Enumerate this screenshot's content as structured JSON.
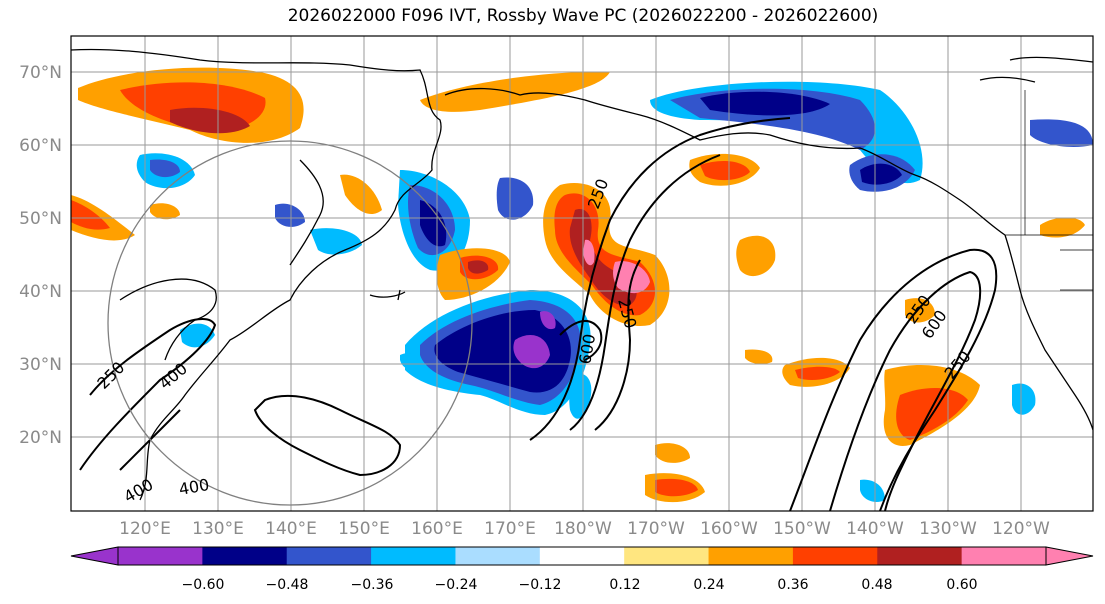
{
  "title": "2026022000 F096 IVT, Rossby Wave PC (2026022200 - 2026022600)",
  "map": {
    "lat_ticks": [
      "70°N",
      "60°N",
      "50°N",
      "40°N",
      "30°N",
      "20°N"
    ],
    "lon_ticks": [
      "120°E",
      "130°E",
      "140°E",
      "150°E",
      "160°E",
      "170°E",
      "180°W",
      "170°W",
      "160°W",
      "150°W",
      "140°W",
      "130°W",
      "120°W"
    ],
    "contour_labels": [
      "250",
      "250",
      "600",
      "250",
      "400",
      "250",
      "600",
      "400",
      "250",
      "400"
    ]
  },
  "colorbar": {
    "tick_labels": [
      "−0.60",
      "−0.48",
      "−0.36",
      "−0.24",
      "−0.12",
      "0.12",
      "0.24",
      "0.36",
      "0.48",
      "0.60"
    ],
    "colors": [
      "#9933cc",
      "#000088",
      "#3355cc",
      "#00bbff",
      "#aaddff",
      "#ffffff",
      "#ffe680",
      "#ffa000",
      "#ff4000",
      "#b02020",
      "#ff80b0"
    ],
    "extend": "both"
  }
}
